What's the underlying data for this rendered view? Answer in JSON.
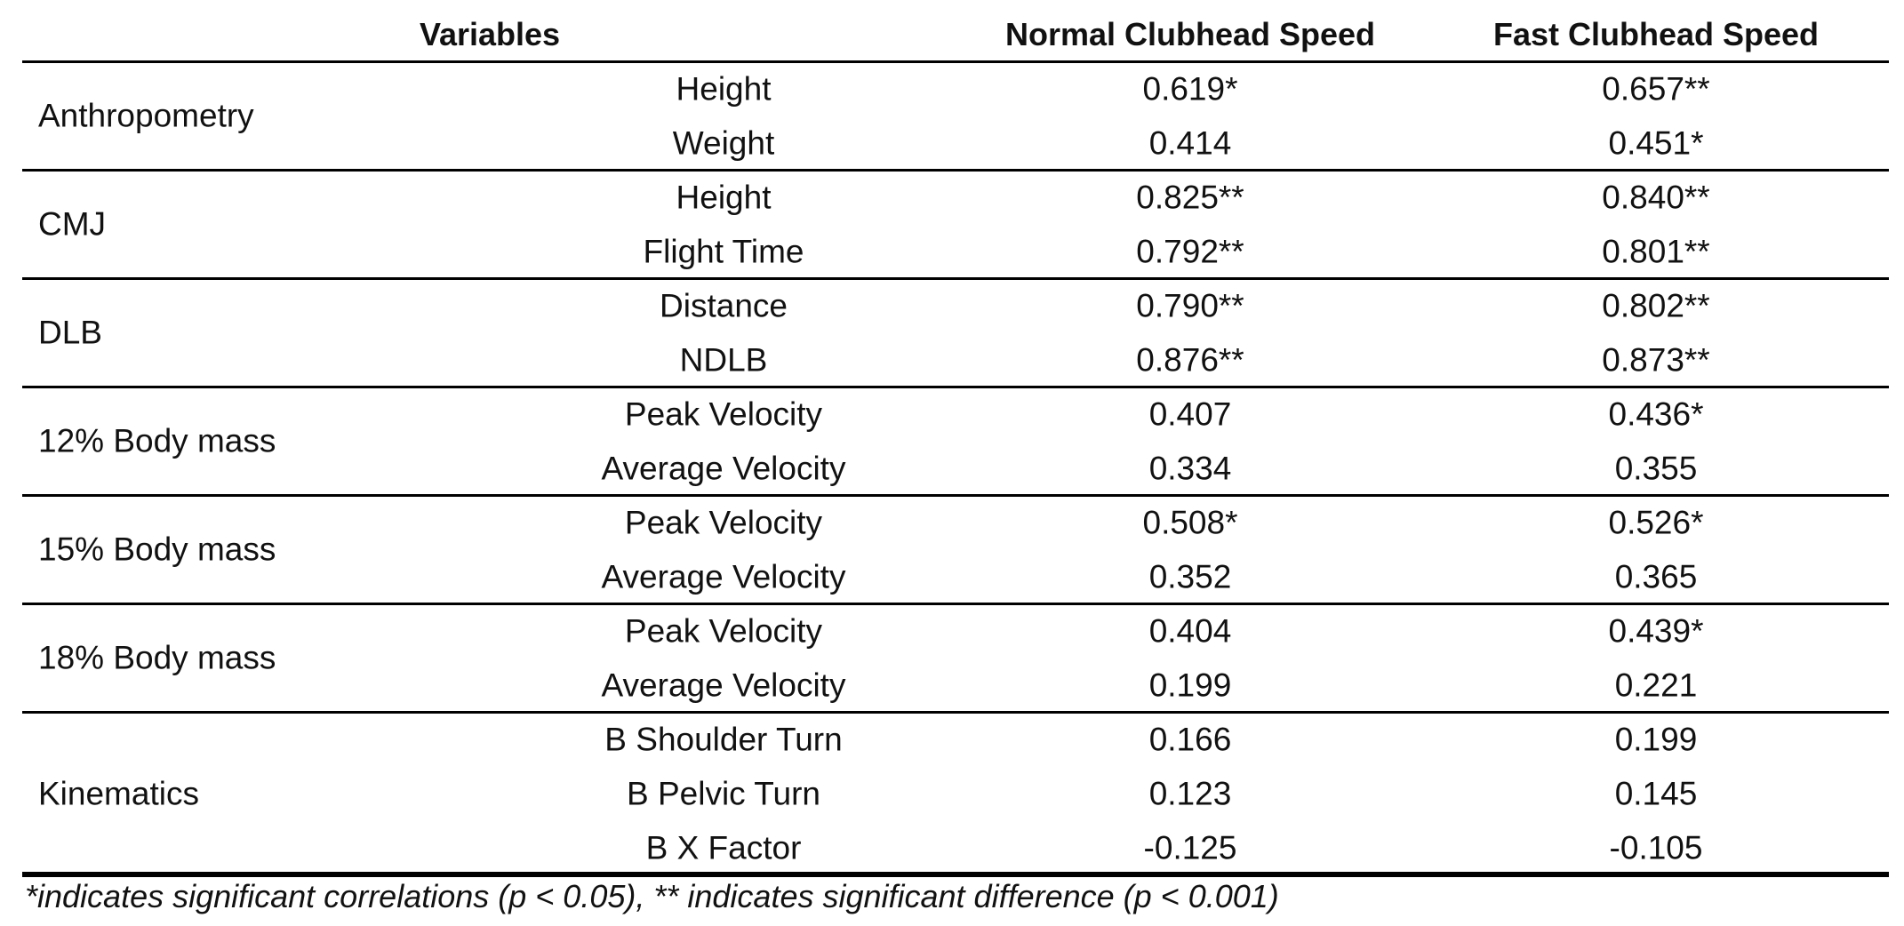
{
  "header": {
    "columns": [
      "Variables",
      "Normal Clubhead Speed",
      "Fast Clubhead Speed"
    ]
  },
  "groups": [
    {
      "name": "Anthropometry",
      "rows": [
        [
          "Height",
          "0.619*",
          "0.657**"
        ],
        [
          "Weight",
          "0.414",
          "0.451*"
        ]
      ]
    },
    {
      "name": "CMJ",
      "rows": [
        [
          "Height",
          "0.825**",
          "0.840**"
        ],
        [
          "Flight Time",
          "0.792**",
          "0.801**"
        ]
      ]
    },
    {
      "name": "DLB",
      "rows": [
        [
          "Distance",
          "0.790**",
          "0.802**"
        ],
        [
          "NDLB",
          "0.876**",
          "0.873**"
        ]
      ]
    },
    {
      "name": "12% Body mass",
      "rows": [
        [
          "Peak Velocity",
          "0.407",
          "0.436*"
        ],
        [
          "Average Velocity",
          "0.334",
          "0.355"
        ]
      ]
    },
    {
      "name": "15% Body mass",
      "rows": [
        [
          "Peak Velocity",
          "0.508*",
          "0.526*"
        ],
        [
          "Average Velocity",
          "0.352",
          "0.365"
        ]
      ]
    },
    {
      "name": "18% Body mass",
      "rows": [
        [
          "Peak Velocity",
          "0.404",
          "0.439*"
        ],
        [
          "Average Velocity",
          "0.199",
          "0.221"
        ]
      ]
    },
    {
      "name": "Kinematics",
      "rows": [
        [
          "B Shoulder Turn",
          "0.166",
          "0.199"
        ],
        [
          "B Pelvic Turn",
          "0.123",
          "0.145"
        ],
        [
          "B X Factor",
          "-0.125",
          "-0.105"
        ]
      ]
    }
  ],
  "footnote": "*indicates significant correlations (p < 0.05), ** indicates significant difference (p < 0.001)"
}
